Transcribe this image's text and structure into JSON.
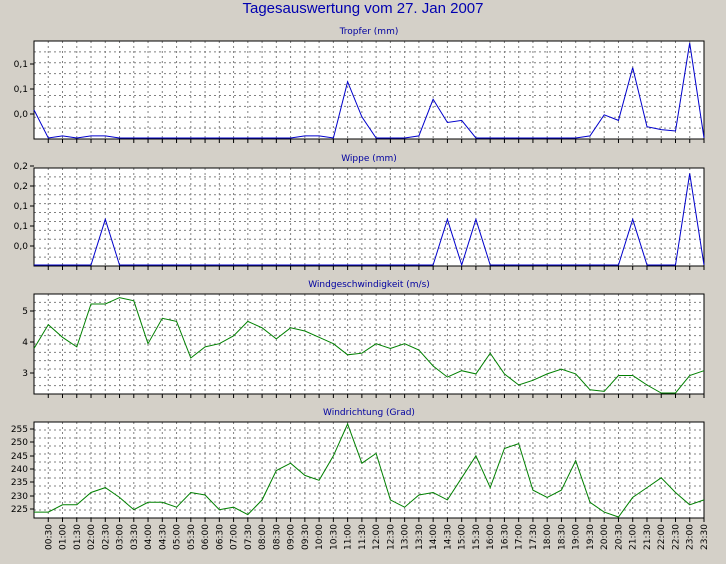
{
  "title": "Tagesauswertung vom 27. Jan 2007",
  "colors": {
    "background": "#d4d0c8",
    "plot_bg": "#ffffff",
    "grid": "#808080",
    "blue": "#0000cc",
    "green": "#008000",
    "title": "#0000b0"
  },
  "x_tick_labels": [
    "00:30",
    "01:00",
    "01:30",
    "02:00",
    "02:30",
    "03:00",
    "03:30",
    "04:00",
    "04:30",
    "05:00",
    "05:30",
    "06:00",
    "06:30",
    "07:00",
    "07:30",
    "08:00",
    "08:30",
    "09:00",
    "09:30",
    "10:00",
    "10:30",
    "11:00",
    "11:30",
    "12:00",
    "12:30",
    "13:00",
    "13:30",
    "14:00",
    "14:30",
    "15:00",
    "15:30",
    "16:00",
    "16:30",
    "17:00",
    "17:30",
    "18:00",
    "18:30",
    "19:00",
    "19:30",
    "20:00",
    "20:30",
    "21:00",
    "21:30",
    "22:00",
    "22:30",
    "23:00",
    "23:30"
  ],
  "chart_data": [
    {
      "type": "line",
      "title": "Tropfer (mm)",
      "x": [
        "00:00",
        "00:30",
        "01:00",
        "01:30",
        "02:00",
        "02:30",
        "03:00",
        "03:30",
        "04:00",
        "04:30",
        "05:00",
        "05:30",
        "06:00",
        "06:30",
        "07:00",
        "07:30",
        "08:00",
        "08:30",
        "09:00",
        "09:30",
        "10:00",
        "10:30",
        "11:00",
        "11:30",
        "12:00",
        "12:30",
        "13:00",
        "13:30",
        "14:00",
        "14:30",
        "15:00",
        "15:30",
        "16:00",
        "16:30",
        "17:00",
        "17:30",
        "18:00",
        "18:30",
        "19:00",
        "19:30",
        "20:00",
        "20:30",
        "21:00",
        "21:30",
        "22:00",
        "22:30",
        "23:00",
        "23:30"
      ],
      "series": [
        {
          "values": [
            0.04,
            0,
            0.003,
            0,
            0.003,
            0.003,
            0,
            0,
            0,
            0,
            0,
            0,
            0,
            0,
            0,
            0,
            0,
            0,
            0,
            0.003,
            0.003,
            0,
            0.08,
            0.03,
            0,
            0,
            0,
            0.003,
            0.055,
            0.022,
            0.025,
            0,
            0,
            0,
            0,
            0,
            0,
            0,
            0,
            0.003,
            0.033,
            0.025,
            0.1,
            0.016,
            0.012,
            0.01,
            0.135,
            0
          ]
        }
      ],
      "y_tick_labels": [
        "0,0",
        "0,1",
        "0,1"
      ],
      "ylim": [
        0,
        0.135
      ],
      "color": "#0000cc"
    },
    {
      "type": "line",
      "title": "Wippe (mm)",
      "x": [
        "00:00",
        "00:30",
        "01:00",
        "01:30",
        "02:00",
        "02:30",
        "03:00",
        "03:30",
        "04:00",
        "04:30",
        "05:00",
        "05:30",
        "06:00",
        "06:30",
        "07:00",
        "07:30",
        "08:00",
        "08:30",
        "09:00",
        "09:30",
        "10:00",
        "10:30",
        "11:00",
        "11:30",
        "12:00",
        "12:30",
        "13:00",
        "13:30",
        "14:00",
        "14:30",
        "15:00",
        "15:30",
        "16:00",
        "16:30",
        "17:00",
        "17:30",
        "18:00",
        "18:30",
        "19:00",
        "19:30",
        "20:00",
        "20:30",
        "21:00",
        "21:30",
        "22:00",
        "22:30",
        "23:00",
        "23:30"
      ],
      "series": [
        {
          "values": [
            0,
            0,
            0,
            0,
            0,
            0.13,
            0,
            0,
            0,
            0,
            0,
            0,
            0,
            0,
            0,
            0,
            0,
            0,
            0,
            0,
            0,
            0,
            0,
            0,
            0,
            0,
            0,
            0,
            0,
            0.13,
            0,
            0.13,
            0,
            0,
            0,
            0,
            0,
            0,
            0,
            0,
            0,
            0,
            0.13,
            0,
            0,
            0,
            0.26,
            0
          ]
        }
      ],
      "y_tick_labels": [
        "0,0",
        "0,1",
        "0,1",
        "0,2",
        "0,2"
      ],
      "ylim": [
        0,
        0.27
      ],
      "color": "#0000cc"
    },
    {
      "type": "line",
      "title": "Windgeschwindigkeit (m/s)",
      "x": [
        "00:00",
        "00:30",
        "01:00",
        "01:30",
        "02:00",
        "02:30",
        "03:00",
        "03:30",
        "04:00",
        "04:30",
        "05:00",
        "05:30",
        "06:00",
        "06:30",
        "07:00",
        "07:30",
        "08:00",
        "08:30",
        "09:00",
        "09:30",
        "10:00",
        "10:30",
        "11:00",
        "11:30",
        "12:00",
        "12:30",
        "13:00",
        "13:30",
        "14:00",
        "14:30",
        "15:00",
        "15:30",
        "16:00",
        "16:30",
        "17:00",
        "17:30",
        "18:00",
        "18:30",
        "19:00",
        "19:30",
        "20:00",
        "20:30",
        "21:00",
        "21:30",
        "22:00",
        "22:30",
        "23:00",
        "23:30"
      ],
      "series": [
        {
          "values": [
            3.85,
            4.6,
            4.2,
            3.9,
            5.25,
            5.25,
            5.45,
            5.35,
            4,
            4.8,
            4.7,
            3.55,
            3.9,
            4,
            4.25,
            4.7,
            4.5,
            4.15,
            4.5,
            4.4,
            4.2,
            4,
            3.65,
            3.7,
            4,
            3.85,
            4,
            3.8,
            3.3,
            2.95,
            3.15,
            3.05,
            3.7,
            3.05,
            2.7,
            2.85,
            3.05,
            3.2,
            3.05,
            2.55,
            2.5,
            3,
            3,
            2.7,
            2.45,
            2.45,
            3,
            3.15
          ]
        }
      ],
      "y_tick_labels": [
        "3",
        "4",
        "5"
      ],
      "ylim": [
        2.45,
        5.5
      ],
      "color": "#008000"
    },
    {
      "type": "line",
      "title": "Windrichtung (Grad)",
      "x": [
        "00:00",
        "00:30",
        "01:00",
        "01:30",
        "02:00",
        "02:30",
        "03:00",
        "03:30",
        "04:00",
        "04:30",
        "05:00",
        "05:30",
        "06:00",
        "06:30",
        "07:00",
        "07:30",
        "08:00",
        "08:30",
        "09:00",
        "09:30",
        "10:00",
        "10:30",
        "11:00",
        "11:30",
        "12:00",
        "12:30",
        "13:00",
        "13:30",
        "14:00",
        "14:30",
        "15:00",
        "15:30",
        "16:00",
        "16:30",
        "17:00",
        "17:30",
        "18:00",
        "18:30",
        "19:00",
        "19:30",
        "20:00",
        "20:30",
        "21:00",
        "21:30",
        "22:00",
        "22:30",
        "23:00",
        "23:30"
      ],
      "series": [
        {
          "values": [
            222,
            222,
            225,
            225,
            230,
            232,
            228,
            223,
            226,
            226,
            224,
            230,
            229,
            223,
            224,
            221,
            227,
            239,
            242,
            237,
            235,
            245,
            258,
            242,
            246,
            227,
            224,
            229,
            230,
            227,
            236,
            245,
            232,
            248,
            250,
            231,
            228,
            231,
            243,
            226,
            222,
            220,
            228,
            232,
            236,
            230,
            225,
            227
          ]
        }
      ],
      "y_tick_labels": [
        "225",
        "230",
        "235",
        "240",
        "245",
        "250",
        "255"
      ],
      "ylim": [
        220,
        258
      ],
      "color": "#008000"
    }
  ]
}
